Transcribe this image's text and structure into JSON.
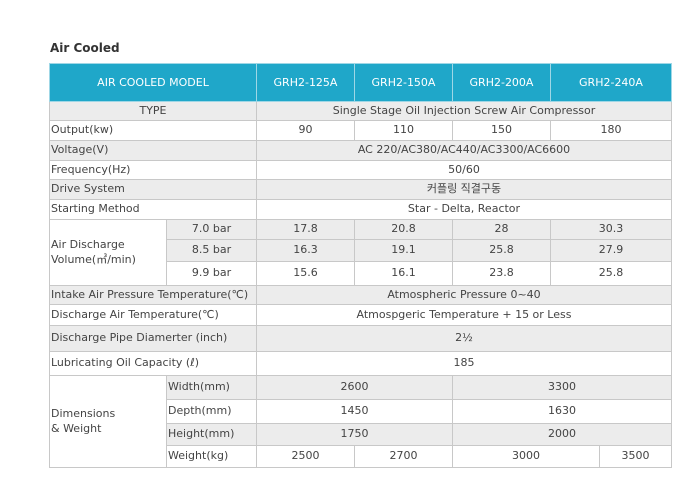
{
  "page_title": "Air Cooled",
  "header": {
    "label": "AIR COOLED MODEL",
    "models": [
      "GRH2-125A",
      "GRH2-150A",
      "GRH2-200A",
      "GRH2-240A"
    ]
  },
  "rows": {
    "type": {
      "label": "TYPE",
      "value": "Single Stage  Oil Injection Screw Air Compressor"
    },
    "output": {
      "label": "Output(kw)",
      "values": [
        "90",
        "110",
        "150",
        "180"
      ]
    },
    "voltage": {
      "label": "Voltage(V)",
      "value": "AC 220/AC380/AC440/AC3300/AC6600"
    },
    "frequency": {
      "label": "Frequency(Hz)",
      "value": "50/60"
    },
    "drive": {
      "label": "Drive System",
      "value": "커플링 직결구동"
    },
    "starting": {
      "label": "Starting Method",
      "value": "Star - Delta, Reactor"
    },
    "discharge": {
      "label_line1": "Air Discharge",
      "label_line2": "Volume(㎥/min)",
      "pressures": [
        {
          "label": "7.0 bar",
          "values": [
            "17.8",
            "20.8",
            "28",
            "30.3"
          ]
        },
        {
          "label": "8.5 bar",
          "values": [
            "16.3",
            "19.1",
            "25.8",
            "27.9"
          ]
        },
        {
          "label": "9.9 bar",
          "values": [
            "15.6",
            "16.1",
            "23.8",
            "25.8"
          ]
        }
      ]
    },
    "intake_temp": {
      "label": "Intake Air Pressure Temperature(℃)",
      "value": "Atmospheric Pressure 0~40"
    },
    "discharge_temp": {
      "label": "Discharge Air Temperature(℃)",
      "value": "Atmospgeric Temperature + 15 or Less"
    },
    "pipe": {
      "label": "Discharge Pipe Diamerter (inch)",
      "value": "2½"
    },
    "oil": {
      "label": "Lubricating Oil Capacity (ℓ)",
      "value": "185"
    },
    "dimensions": {
      "label_line1": "Dimensions",
      "label_line2": "& Weight",
      "width": {
        "label": "Width(mm)",
        "values": [
          "2600",
          "3300"
        ]
      },
      "depth": {
        "label": "Depth(mm)",
        "values": [
          "1450",
          "1630"
        ]
      },
      "height": {
        "label": "Height(mm)",
        "values": [
          "1750",
          "2000"
        ]
      },
      "weight": {
        "label": "Weight(kg)",
        "values": [
          "2500",
          "2700",
          "3000",
          "3500"
        ]
      }
    }
  },
  "colors": {
    "header_bg": "#1fa7c9",
    "stripe_bg": "#ececec",
    "border": "#c8c8c8"
  }
}
